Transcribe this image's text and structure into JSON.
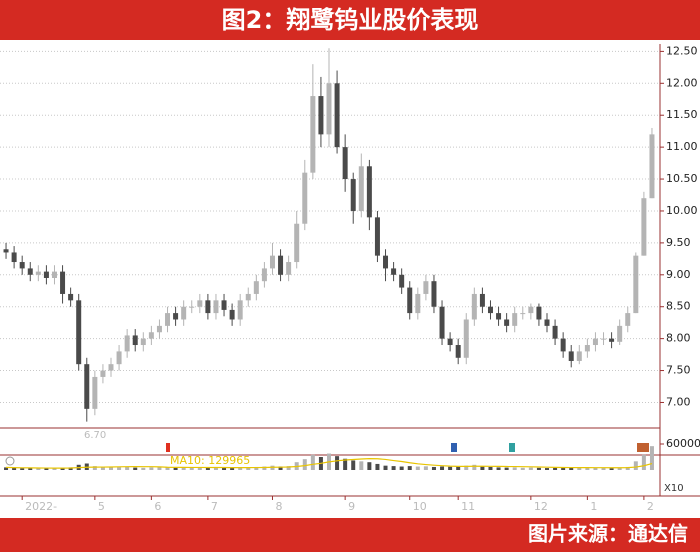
{
  "chart_data": {
    "type": "candlestick",
    "title": "图2：翔鹭钨业股价表现",
    "source": "图片来源：通达信",
    "low_annotation": "6.70",
    "categories": [
      null,
      null,
      "2022-",
      null,
      null,
      null,
      null,
      null,
      null,
      null,
      null,
      "5",
      null,
      null,
      null,
      null,
      null,
      null,
      "6",
      null,
      null,
      null,
      null,
      null,
      null,
      "7",
      null,
      null,
      null,
      null,
      null,
      null,
      null,
      "8",
      null,
      null,
      null,
      null,
      null,
      null,
      null,
      null,
      "9",
      null,
      null,
      null,
      null,
      null,
      null,
      null,
      "10",
      null,
      null,
      null,
      null,
      null,
      "11",
      null,
      null,
      null,
      null,
      null,
      null,
      null,
      null,
      "12",
      null,
      null,
      null,
      null,
      null,
      null,
      "1",
      null,
      null,
      null,
      null,
      null,
      null,
      "2",
      null
    ],
    "open": [
      9.4,
      9.35,
      9.2,
      9.1,
      9.0,
      9.05,
      8.95,
      9.05,
      8.7,
      8.6,
      7.6,
      6.9,
      7.4,
      7.5,
      7.6,
      7.8,
      8.05,
      7.9,
      8.0,
      8.1,
      8.2,
      8.4,
      8.3,
      8.5,
      8.5,
      8.6,
      8.4,
      8.6,
      8.45,
      8.3,
      8.6,
      8.7,
      8.9,
      9.1,
      9.3,
      9.0,
      9.2,
      9.8,
      10.6,
      11.8,
      11.2,
      12.0,
      11.0,
      10.5,
      10.0,
      10.7,
      9.9,
      9.3,
      9.1,
      9.0,
      8.8,
      8.4,
      8.7,
      8.9,
      8.5,
      8.0,
      7.9,
      7.7,
      8.3,
      8.7,
      8.5,
      8.4,
      8.3,
      8.2,
      8.4,
      8.4,
      8.5,
      8.3,
      8.2,
      8.0,
      7.8,
      7.65,
      7.8,
      7.9,
      8.0,
      8.0,
      7.95,
      8.2,
      8.4,
      9.3,
      10.2
    ],
    "high": [
      9.5,
      9.45,
      9.3,
      9.2,
      9.15,
      9.15,
      9.15,
      9.15,
      8.8,
      8.7,
      7.7,
      7.5,
      7.6,
      7.7,
      7.9,
      8.15,
      8.15,
      8.1,
      8.2,
      8.3,
      8.5,
      8.5,
      8.6,
      8.6,
      8.7,
      8.7,
      8.7,
      8.7,
      8.55,
      8.7,
      8.8,
      9.0,
      9.2,
      9.5,
      9.4,
      9.3,
      10.0,
      10.8,
      12.3,
      12.1,
      12.55,
      12.2,
      11.2,
      10.6,
      10.9,
      10.8,
      10.0,
      9.4,
      9.2,
      9.1,
      8.9,
      8.8,
      9.0,
      9.0,
      8.6,
      8.1,
      8.0,
      8.4,
      8.8,
      8.8,
      8.6,
      8.5,
      8.4,
      8.5,
      8.5,
      8.55,
      8.55,
      8.4,
      8.3,
      8.1,
      7.9,
      7.9,
      8.0,
      8.1,
      8.1,
      8.1,
      8.3,
      8.5,
      9.35,
      10.3,
      11.3
    ],
    "low": [
      9.25,
      9.1,
      9.0,
      8.9,
      8.9,
      8.85,
      8.85,
      8.55,
      8.5,
      7.5,
      6.7,
      6.8,
      7.3,
      7.4,
      7.5,
      7.7,
      7.8,
      7.8,
      7.9,
      8.0,
      8.1,
      8.2,
      8.2,
      8.4,
      8.4,
      8.3,
      8.3,
      8.35,
      8.2,
      8.2,
      8.5,
      8.6,
      8.8,
      9.0,
      8.9,
      8.9,
      9.1,
      9.7,
      10.5,
      11.0,
      11.0,
      10.9,
      10.3,
      9.8,
      9.9,
      9.7,
      9.2,
      8.9,
      8.9,
      8.7,
      8.3,
      8.3,
      8.6,
      8.4,
      7.9,
      7.8,
      7.6,
      7.6,
      8.2,
      8.4,
      8.3,
      8.2,
      8.1,
      8.1,
      8.3,
      8.3,
      8.2,
      8.1,
      7.9,
      7.7,
      7.55,
      7.6,
      7.7,
      7.8,
      7.9,
      7.85,
      7.9,
      8.1,
      8.4,
      9.3,
      10.2
    ],
    "close": [
      9.35,
      9.2,
      9.1,
      9.0,
      9.05,
      8.95,
      9.05,
      8.7,
      8.6,
      7.6,
      6.9,
      7.4,
      7.5,
      7.6,
      7.8,
      8.05,
      7.9,
      8.0,
      8.1,
      8.2,
      8.4,
      8.3,
      8.5,
      8.5,
      8.6,
      8.4,
      8.6,
      8.45,
      8.3,
      8.6,
      8.7,
      8.9,
      9.1,
      9.3,
      9.0,
      9.2,
      9.8,
      10.6,
      11.8,
      11.2,
      12.0,
      11.0,
      10.5,
      10.0,
      10.7,
      9.9,
      9.3,
      9.1,
      9.0,
      8.8,
      8.4,
      8.7,
      8.9,
      8.5,
      8.0,
      7.9,
      7.7,
      8.3,
      8.7,
      8.5,
      8.4,
      8.3,
      8.2,
      8.4,
      8.4,
      8.5,
      8.3,
      8.2,
      8.0,
      7.8,
      7.65,
      7.8,
      7.9,
      8.0,
      8.0,
      7.95,
      8.2,
      8.4,
      9.3,
      10.2,
      11.2
    ],
    "up_color": "#b4b4b4",
    "down_color": "#4a4a4a",
    "ylim": [
      6.6,
      12.6
    ],
    "yticks": [
      {
        "value": 7,
        "label": "7.00"
      },
      {
        "value": 7.5,
        "label": "7.50"
      },
      {
        "value": 8,
        "label": "8.00"
      },
      {
        "value": 8.5,
        "label": "8.50"
      },
      {
        "value": 9,
        "label": "9.00"
      },
      {
        "value": 9.5,
        "label": "9.50"
      },
      {
        "value": 10,
        "label": "10.00"
      },
      {
        "value": 10.5,
        "label": "10.50"
      },
      {
        "value": 11,
        "label": "11.00"
      },
      {
        "value": 11.5,
        "label": "11.50"
      },
      {
        "value": 12,
        "label": "12.00"
      },
      {
        "value": 12.5,
        "label": "12.50"
      }
    ],
    "grid": true,
    "volume": {
      "values": [
        6000,
        5000,
        4000,
        4500,
        3500,
        4000,
        3500,
        5000,
        6000,
        12000,
        15000,
        9000,
        7000,
        6000,
        6500,
        7000,
        5500,
        5000,
        6000,
        6500,
        7000,
        6000,
        6500,
        5500,
        6000,
        5000,
        5500,
        5000,
        4500,
        6000,
        6500,
        7000,
        8000,
        10000,
        8000,
        9000,
        18000,
        25000,
        35000,
        30000,
        38000,
        32000,
        26000,
        22000,
        20000,
        18000,
        14000,
        10000,
        9000,
        8000,
        9000,
        8000,
        8500,
        7000,
        8000,
        7500,
        9000,
        10000,
        12000,
        8000,
        7000,
        6000,
        5500,
        6000,
        5000,
        5500,
        5000,
        4500,
        5000,
        5500,
        6000,
        5000,
        4500,
        5000,
        4500,
        4000,
        5000,
        7000,
        20000,
        35000,
        55000
      ],
      "ylim": [
        0,
        60000
      ],
      "yticks": [
        60000
      ],
      "scale_label": "X10",
      "ma": {
        "name": "MA10: 129965",
        "color": "#e8c400",
        "values": [
          6000,
          5500,
          5000,
          4900,
          4600,
          4500,
          4400,
          4400,
          4600,
          5400,
          6300,
          6600,
          6800,
          7000,
          7300,
          7600,
          7800,
          7700,
          7700,
          7200,
          6400,
          6100,
          6000,
          5900,
          5900,
          5700,
          5700,
          5700,
          5500,
          5500,
          5500,
          5600,
          5800,
          6300,
          6500,
          6900,
          8100,
          10100,
          13100,
          15500,
          18700,
          21200,
          23000,
          24200,
          25400,
          26300,
          25900,
          24400,
          21800,
          19600,
          16700,
          14300,
          12600,
          11100,
          9900,
          8900,
          8400,
          8400,
          8700,
          8700,
          8500,
          8300,
          8000,
          7900,
          7600,
          7400,
          7000,
          6500,
          6000,
          5700,
          5600,
          5500,
          5400,
          5300,
          5300,
          5200,
          5200,
          5400,
          6800,
          9800,
          14800
        ]
      }
    }
  }
}
